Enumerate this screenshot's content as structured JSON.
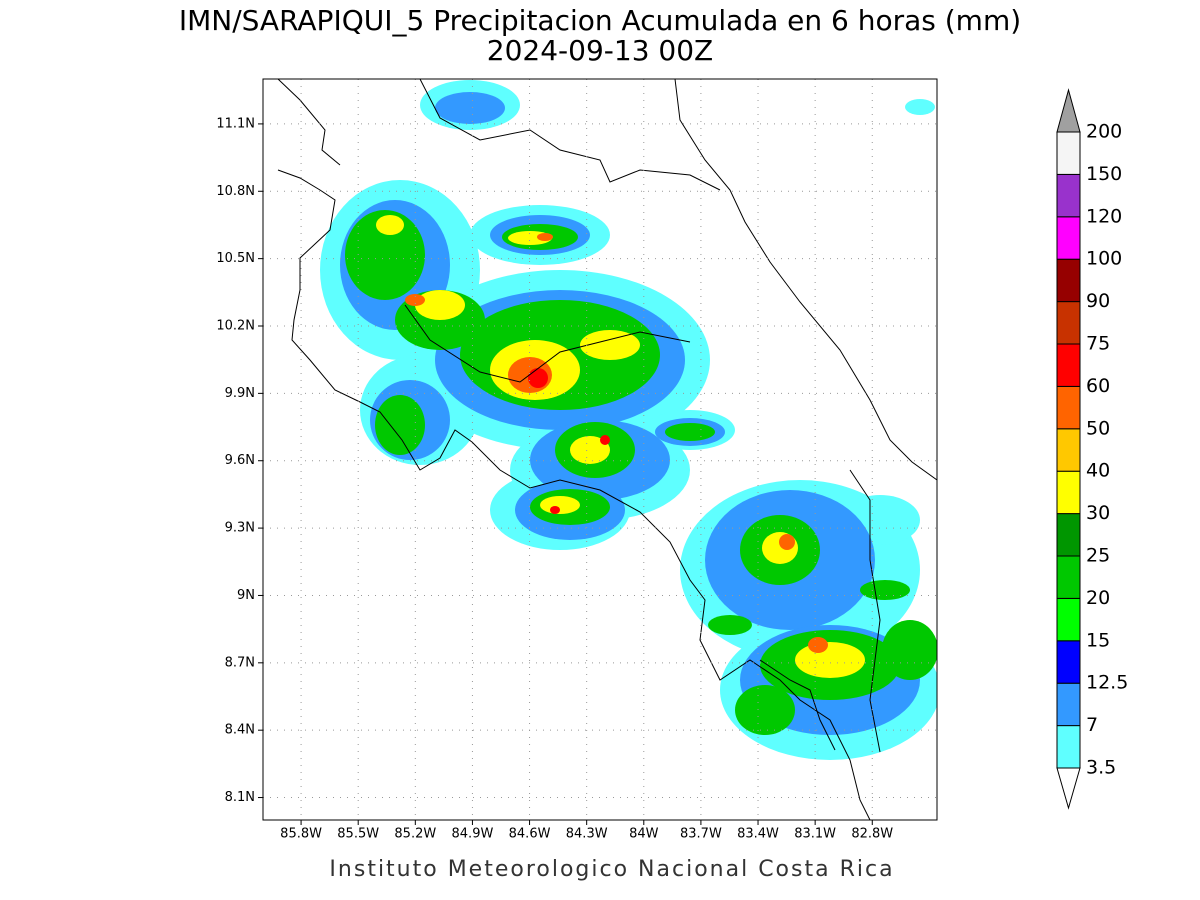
{
  "title": "IMN/SARAPIQUI_5 Precipitacion Acumulada en 6 horas (mm)",
  "subtitle": "2024-09-13 00Z",
  "footer": "Instituto Meteorologico Nacional Costa Rica",
  "map": {
    "xlim": [
      -86.0,
      -82.46
    ],
    "ylim": [
      8.0,
      11.3
    ],
    "grid": true,
    "lon_ticks": [
      {
        "value": -85.8,
        "label": "85.8W"
      },
      {
        "value": -85.5,
        "label": "85.5W"
      },
      {
        "value": -85.2,
        "label": "85.2W"
      },
      {
        "value": -84.9,
        "label": "84.9W"
      },
      {
        "value": -84.6,
        "label": "84.6W"
      },
      {
        "value": -84.3,
        "label": "84.3W"
      },
      {
        "value": -84.0,
        "label": "84W"
      },
      {
        "value": -83.7,
        "label": "83.7W"
      },
      {
        "value": -83.4,
        "label": "83.4W"
      },
      {
        "value": -83.1,
        "label": "83.1W"
      },
      {
        "value": -82.8,
        "label": "82.8W"
      }
    ],
    "lat_ticks": [
      {
        "value": 8.1,
        "label": "8.1N"
      },
      {
        "value": 8.4,
        "label": "8.4N"
      },
      {
        "value": 8.7,
        "label": "8.7N"
      },
      {
        "value": 9.0,
        "label": "9N"
      },
      {
        "value": 9.3,
        "label": "9.3N"
      },
      {
        "value": 9.6,
        "label": "9.6N"
      },
      {
        "value": 9.9,
        "label": "9.9N"
      },
      {
        "value": 10.2,
        "label": "10.2N"
      },
      {
        "value": 10.5,
        "label": "10.5N"
      },
      {
        "value": 10.8,
        "label": "10.8N"
      },
      {
        "value": 11.1,
        "label": "11.1N"
      }
    ]
  },
  "colorbar": {
    "levels": [
      3.5,
      7,
      12.5,
      15,
      20,
      25,
      30,
      40,
      50,
      60,
      75,
      90,
      100,
      120,
      150,
      200
    ],
    "colors": [
      "#5fffff",
      "#3399ff",
      "#0000ff",
      "#00ff00",
      "#00c800",
      "#009600",
      "#ffff00",
      "#ffc800",
      "#ff6400",
      "#ff0000",
      "#c83200",
      "#960000",
      "#ff00ff",
      "#9932cc",
      "#f5f5f5"
    ],
    "under_color": "#ffffff",
    "over_color": "#a0a0a0"
  }
}
